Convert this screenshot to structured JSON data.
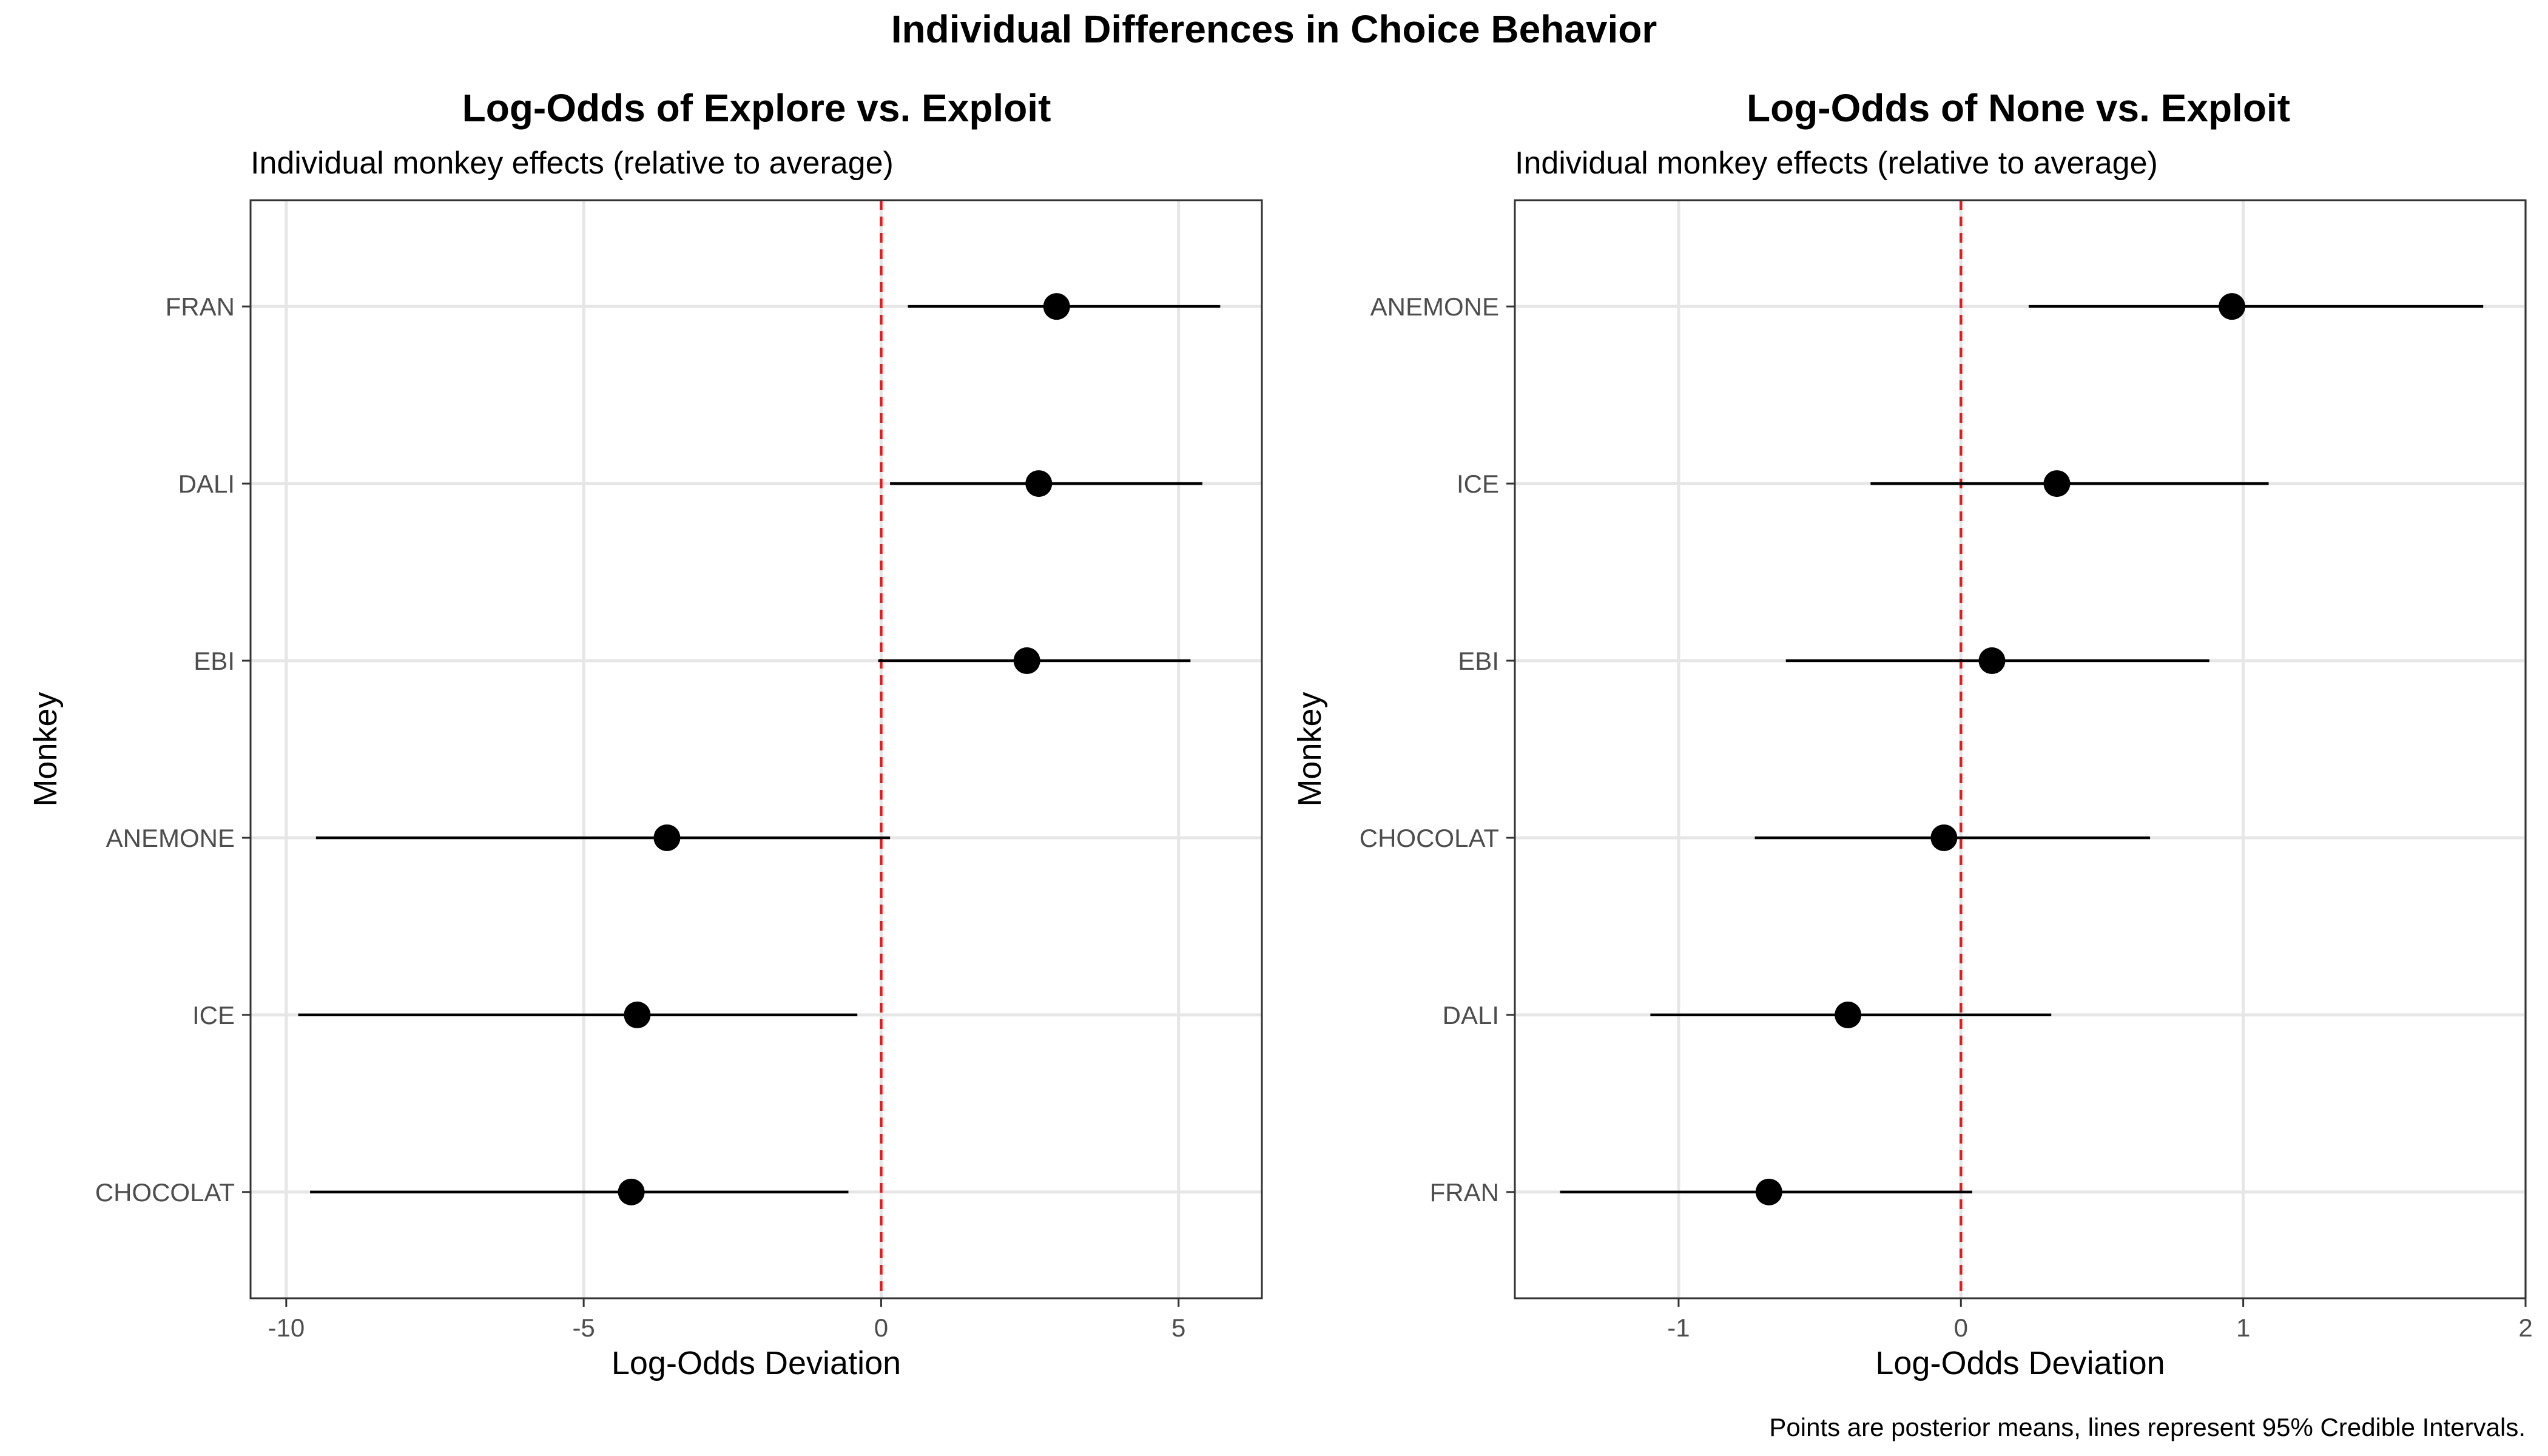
{
  "figure": {
    "title": "Individual Differences in Choice Behavior",
    "caption": "Points are posterior means, lines represent 95% Credible Intervals."
  },
  "chart_data": [
    {
      "type": "scatter",
      "title": "Log-Odds of Explore vs. Exploit",
      "subtitle": "Individual monkey effects (relative to average)",
      "xlabel": "Log-Odds Deviation",
      "ylabel": "Monkey",
      "xlim": [
        -10.6,
        6.4
      ],
      "xticks": [
        -10,
        -5,
        0,
        5
      ],
      "xtick_labels": [
        "-10",
        "-5",
        "0",
        "5"
      ],
      "reference_line": 0,
      "reference_color": "#e41a1c",
      "grid": true,
      "categories": [
        "FRAN",
        "DALI",
        "EBI",
        "ANEMONE",
        "ICE",
        "CHOCOLAT"
      ],
      "mean": [
        2.95,
        2.65,
        2.45,
        -3.6,
        -4.1,
        -4.2
      ],
      "lower": [
        0.45,
        0.15,
        -0.05,
        -9.5,
        -9.8,
        -9.6
      ],
      "upper": [
        5.7,
        5.4,
        5.2,
        0.15,
        -0.4,
        -0.55
      ]
    },
    {
      "type": "scatter",
      "title": "Log-Odds of None vs. Exploit",
      "subtitle": "Individual monkey effects (relative to average)",
      "xlabel": "Log-Odds Deviation",
      "ylabel": "Monkey",
      "xlim": [
        -1.58,
        2.0
      ],
      "xticks": [
        -1,
        0,
        1,
        2
      ],
      "xtick_labels": [
        "-1",
        "0",
        "1",
        "2"
      ],
      "reference_line": 0,
      "reference_color": "#e41a1c",
      "grid": true,
      "categories": [
        "ANEMONE",
        "ICE",
        "EBI",
        "CHOCOLAT",
        "DALI",
        "FRAN"
      ],
      "mean": [
        0.96,
        0.34,
        0.11,
        -0.06,
        -0.4,
        -0.68
      ],
      "lower": [
        0.24,
        -0.32,
        -0.62,
        -0.73,
        -1.1,
        -1.42
      ],
      "upper": [
        1.85,
        1.09,
        0.88,
        0.67,
        0.32,
        0.04
      ]
    }
  ]
}
